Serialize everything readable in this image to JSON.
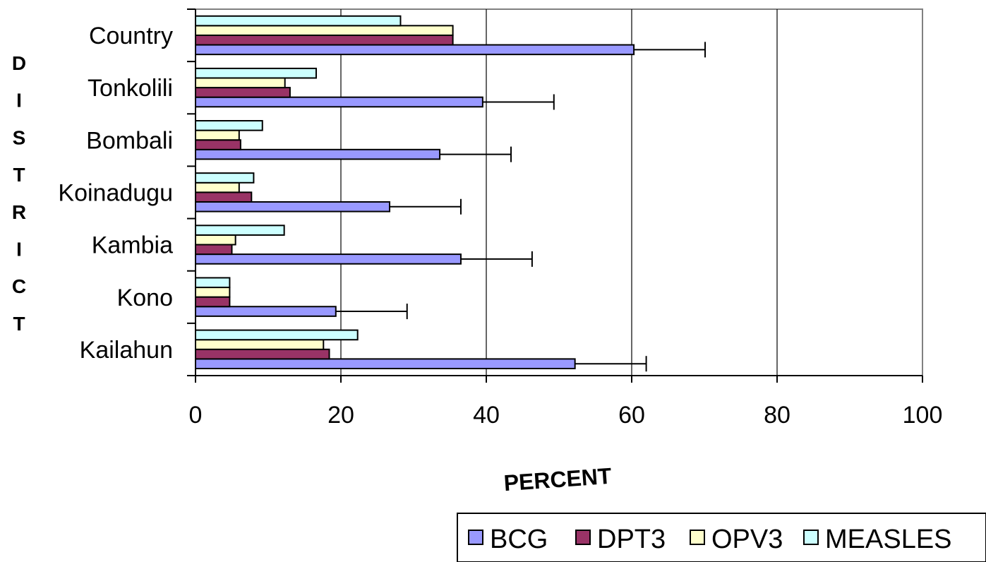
{
  "chart_data": {
    "type": "bar",
    "orientation": "horizontal",
    "categories": [
      "Country",
      "Tonkolili",
      "Bombali",
      "Koinadugu",
      "Kambia",
      "Kono",
      "Kailahun"
    ],
    "series": [
      {
        "name": "BCG",
        "color": "#9999FF",
        "values": [
          60.3,
          39.5,
          33.6,
          26.7,
          36.5,
          19.3,
          52.2
        ],
        "error": [
          9.8,
          9.8,
          9.8,
          9.8,
          9.8,
          9.8,
          9.8
        ]
      },
      {
        "name": "DPT3",
        "color": "#993366",
        "values": [
          35.4,
          13.0,
          6.2,
          7.7,
          5.0,
          4.7,
          18.4
        ]
      },
      {
        "name": "OPV3",
        "color": "#FFFFCC",
        "values": [
          35.4,
          12.3,
          6.0,
          6.0,
          5.5,
          4.7,
          17.6
        ]
      },
      {
        "name": "MEASLES",
        "color": "#CCFFFF",
        "values": [
          28.2,
          16.6,
          9.2,
          8.0,
          12.2,
          4.7,
          22.3
        ]
      }
    ],
    "xlabel": "PERCENT",
    "ylabel": "DISTRICT",
    "xlim": [
      0,
      100
    ],
    "xticks": [
      "0",
      "20",
      "40",
      "60",
      "80",
      "100"
    ],
    "grid": "vertical",
    "legend": "bottom-right"
  }
}
